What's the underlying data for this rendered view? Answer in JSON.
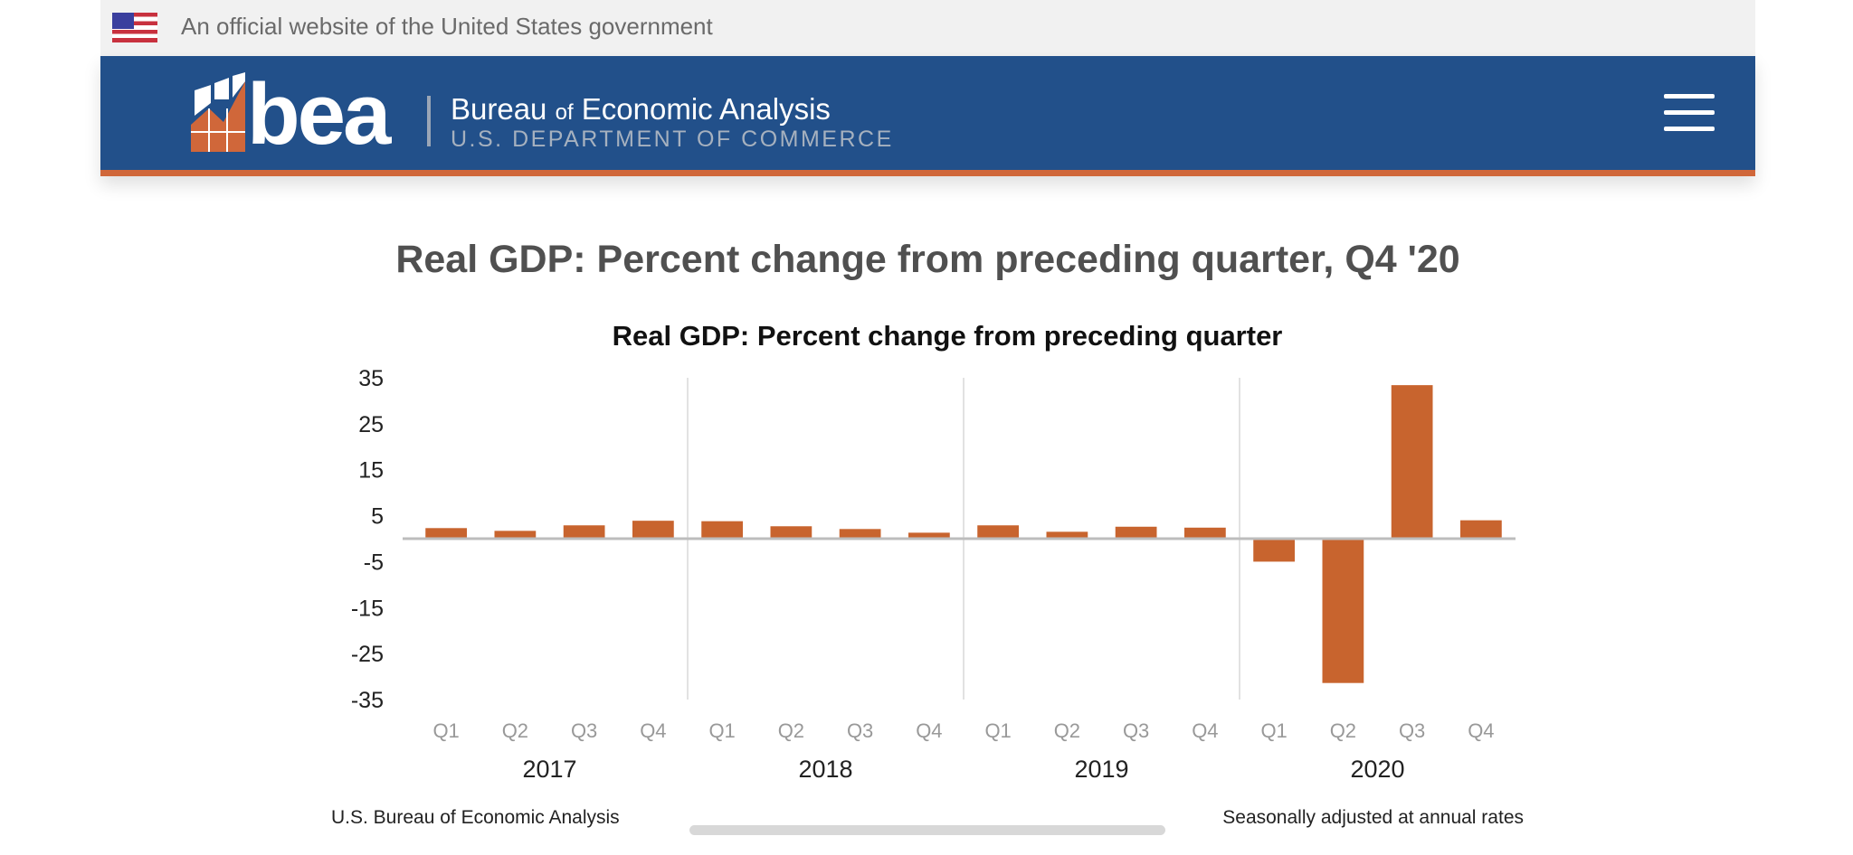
{
  "gov_banner": {
    "text": "An official website of the United States government",
    "icon": "us-flag-icon"
  },
  "header": {
    "logo_text": "bea",
    "name_main": "Bureau",
    "name_of": "of",
    "name_rest": "Economic Analysis",
    "department": "U.S. DEPARTMENT OF COMMERCE",
    "menu_icon": "hamburger-menu-icon",
    "colors": {
      "bar": "#22508a",
      "accent": "#d0673a"
    }
  },
  "page_title": "Real GDP: Percent change from preceding quarter, Q4 '20",
  "chart_data": {
    "type": "bar",
    "title": "Real GDP:  Percent change from preceding quarter",
    "categories": [
      "Q1",
      "Q2",
      "Q3",
      "Q4",
      "Q1",
      "Q2",
      "Q3",
      "Q4",
      "Q1",
      "Q2",
      "Q3",
      "Q4",
      "Q1",
      "Q2",
      "Q3",
      "Q4"
    ],
    "groups": [
      "2017",
      "2018",
      "2019",
      "2020"
    ],
    "values": [
      2.3,
      1.7,
      2.9,
      3.9,
      3.8,
      2.7,
      2.1,
      1.3,
      2.9,
      1.5,
      2.6,
      2.4,
      -5.0,
      -31.4,
      33.4,
      4.0
    ],
    "yticks": [
      "35",
      "25",
      "15",
      "5",
      "-5",
      "-15",
      "-25",
      "-35"
    ],
    "ytick_values": [
      35,
      25,
      15,
      5,
      -5,
      -15,
      -25,
      -35
    ],
    "ylim": [
      -35,
      35
    ],
    "xlabel": "",
    "ylabel": "",
    "grid": false,
    "bar_color": "#c8642e",
    "source": "U.S. Bureau of Economic Analysis",
    "note": "Seasonally adjusted at annual rates"
  }
}
